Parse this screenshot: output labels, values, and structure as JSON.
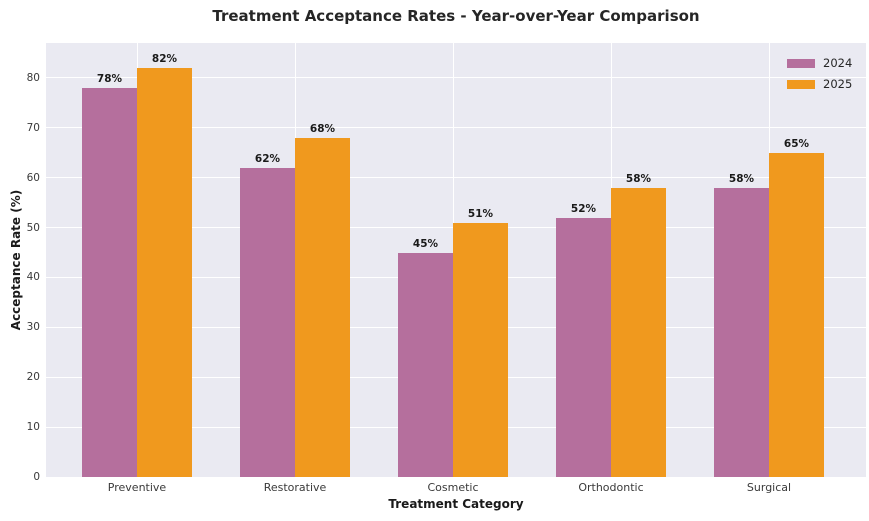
{
  "chart_data": {
    "type": "bar",
    "title": "Treatment Acceptance Rates - Year-over-Year Comparison",
    "xlabel": "Treatment Category",
    "ylabel": "Acceptance Rate (%)",
    "categories": [
      "Preventive",
      "Restorative",
      "Cosmetic",
      "Orthodontic",
      "Surgical"
    ],
    "series": [
      {
        "name": "2024",
        "color": "#b56f9d",
        "values": [
          78,
          62,
          45,
          52,
          58
        ],
        "bar_labels": [
          "78%",
          "62%",
          "45%",
          "52%",
          "58%"
        ]
      },
      {
        "name": "2025",
        "color": "#f0991e",
        "values": [
          82,
          68,
          51,
          58,
          65
        ],
        "bar_labels": [
          "82%",
          "68%",
          "51%",
          "58%",
          "65%"
        ]
      }
    ],
    "yticks": [
      0,
      10,
      20,
      30,
      40,
      50,
      60,
      70,
      80
    ],
    "ytick_labels": [
      "0",
      "10",
      "20",
      "30",
      "40",
      "50",
      "60",
      "70",
      "80"
    ],
    "ylim": [
      0,
      87
    ],
    "grid": true,
    "legend_position": "upper right",
    "colors": {
      "plot_background": "#eaeaf2",
      "gridline": "#ffffff",
      "figure_background": "#ffffff",
      "text": "#262626"
    }
  }
}
